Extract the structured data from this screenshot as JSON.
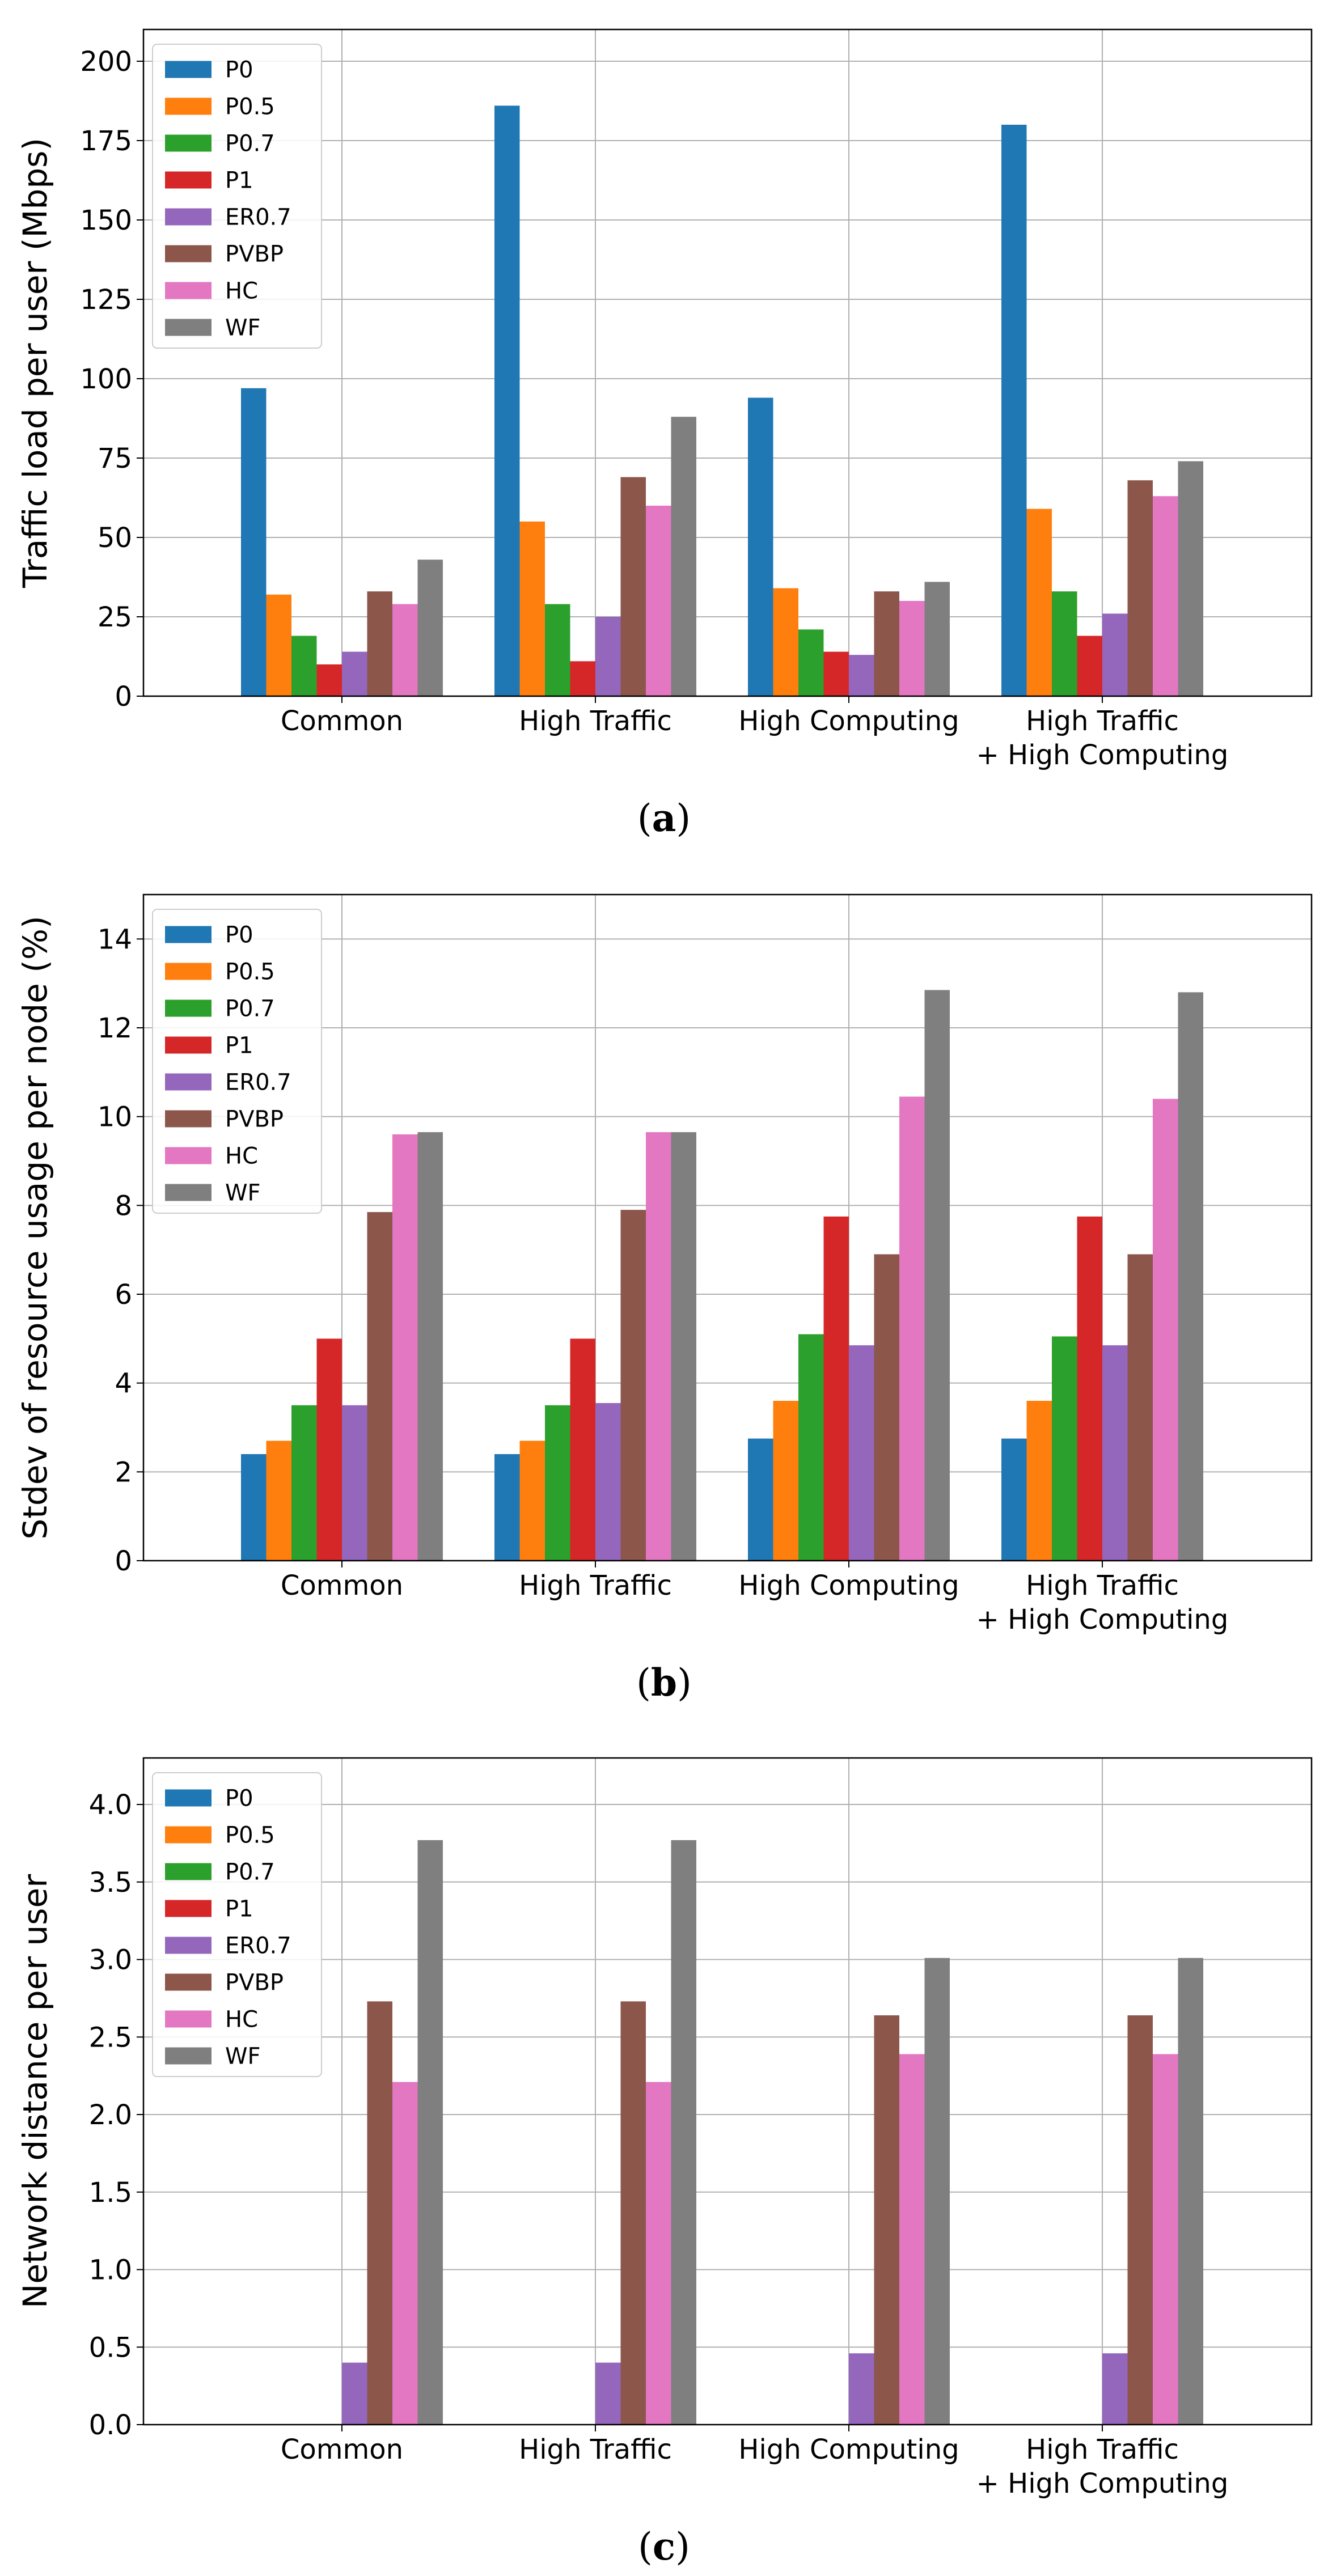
{
  "chart_data": [
    {
      "type": "bar",
      "panel": "(a)",
      "caption_letter": "a",
      "ylabel": "Traffic load per user (Mbps)",
      "xlabel": "",
      "ylim": [
        0,
        210
      ],
      "yticks": [
        0,
        25,
        50,
        75,
        100,
        125,
        150,
        175,
        200
      ],
      "grid": true,
      "legend_position": "top-left",
      "categories": [
        [
          "Common"
        ],
        [
          "High Traffic"
        ],
        [
          "High Computing"
        ],
        [
          "High Traffic",
          "+ High Computing"
        ]
      ],
      "series": [
        {
          "name": "P0",
          "color": "#1f77b4",
          "values": [
            97,
            186,
            94,
            180
          ]
        },
        {
          "name": "P0.5",
          "color": "#ff7f0e",
          "values": [
            32,
            55,
            34,
            59
          ]
        },
        {
          "name": "P0.7",
          "color": "#2ca02c",
          "values": [
            19,
            29,
            21,
            33
          ]
        },
        {
          "name": "P1",
          "color": "#d62728",
          "values": [
            10,
            11,
            14,
            19
          ]
        },
        {
          "name": "ER0.7",
          "color": "#9467bd",
          "values": [
            14,
            25,
            13,
            26
          ]
        },
        {
          "name": "PVBP",
          "color": "#8c564b",
          "values": [
            33,
            69,
            33,
            68
          ]
        },
        {
          "name": "HC",
          "color": "#e377c2",
          "values": [
            29,
            60,
            30,
            63
          ]
        },
        {
          "name": "WF",
          "color": "#7f7f7f",
          "values": [
            43,
            88,
            36,
            74
          ]
        }
      ]
    },
    {
      "type": "bar",
      "panel": "(b)",
      "caption_letter": "b",
      "ylabel": "Stdev of resource usage per node (%)",
      "xlabel": "",
      "ylim": [
        0,
        15
      ],
      "yticks": [
        0,
        2,
        4,
        6,
        8,
        10,
        12,
        14
      ],
      "grid": true,
      "legend_position": "top-left",
      "categories": [
        [
          "Common"
        ],
        [
          "High Traffic"
        ],
        [
          "High Computing"
        ],
        [
          "High Traffic",
          "+ High Computing"
        ]
      ],
      "series": [
        {
          "name": "P0",
          "color": "#1f77b4",
          "values": [
            2.4,
            2.4,
            2.75,
            2.75
          ]
        },
        {
          "name": "P0.5",
          "color": "#ff7f0e",
          "values": [
            2.7,
            2.7,
            3.6,
            3.6
          ]
        },
        {
          "name": "P0.7",
          "color": "#2ca02c",
          "values": [
            3.5,
            3.5,
            5.1,
            5.05
          ]
        },
        {
          "name": "P1",
          "color": "#d62728",
          "values": [
            5.0,
            5.0,
            7.75,
            7.75
          ]
        },
        {
          "name": "ER0.7",
          "color": "#9467bd",
          "values": [
            3.5,
            3.55,
            4.85,
            4.85
          ]
        },
        {
          "name": "PVBP",
          "color": "#8c564b",
          "values": [
            7.85,
            7.9,
            6.9,
            6.9
          ]
        },
        {
          "name": "HC",
          "color": "#e377c2",
          "values": [
            9.6,
            9.65,
            10.45,
            10.4
          ]
        },
        {
          "name": "WF",
          "color": "#7f7f7f",
          "values": [
            9.65,
            9.65,
            12.85,
            12.8
          ]
        }
      ]
    },
    {
      "type": "bar",
      "panel": "(c)",
      "caption_letter": "c",
      "ylabel": "Network distance per user",
      "xlabel": "",
      "ylim": [
        0,
        4.3
      ],
      "yticks": [
        "0.0",
        "0.5",
        "1.0",
        "1.5",
        "2.0",
        "2.5",
        "3.0",
        "3.5",
        "4.0"
      ],
      "grid": true,
      "legend_position": "top-left",
      "categories": [
        [
          "Common"
        ],
        [
          "High Traffic"
        ],
        [
          "High Computing"
        ],
        [
          "High Traffic",
          "+ High Computing"
        ]
      ],
      "series": [
        {
          "name": "P0",
          "color": "#1f77b4",
          "values": [
            0,
            0,
            0,
            0
          ]
        },
        {
          "name": "P0.5",
          "color": "#ff7f0e",
          "values": [
            0,
            0,
            0,
            0
          ]
        },
        {
          "name": "P0.7",
          "color": "#2ca02c",
          "values": [
            0,
            0,
            0,
            0
          ]
        },
        {
          "name": "P1",
          "color": "#d62728",
          "values": [
            0,
            0,
            0,
            0
          ]
        },
        {
          "name": "ER0.7",
          "color": "#9467bd",
          "values": [
            0.4,
            0.4,
            0.46,
            0.46
          ]
        },
        {
          "name": "PVBP",
          "color": "#8c564b",
          "values": [
            2.73,
            2.73,
            2.64,
            2.64
          ]
        },
        {
          "name": "HC",
          "color": "#e377c2",
          "values": [
            2.21,
            2.21,
            2.39,
            2.39
          ]
        },
        {
          "name": "WF",
          "color": "#7f7f7f",
          "values": [
            3.77,
            3.77,
            3.01,
            3.01
          ]
        }
      ]
    }
  ]
}
